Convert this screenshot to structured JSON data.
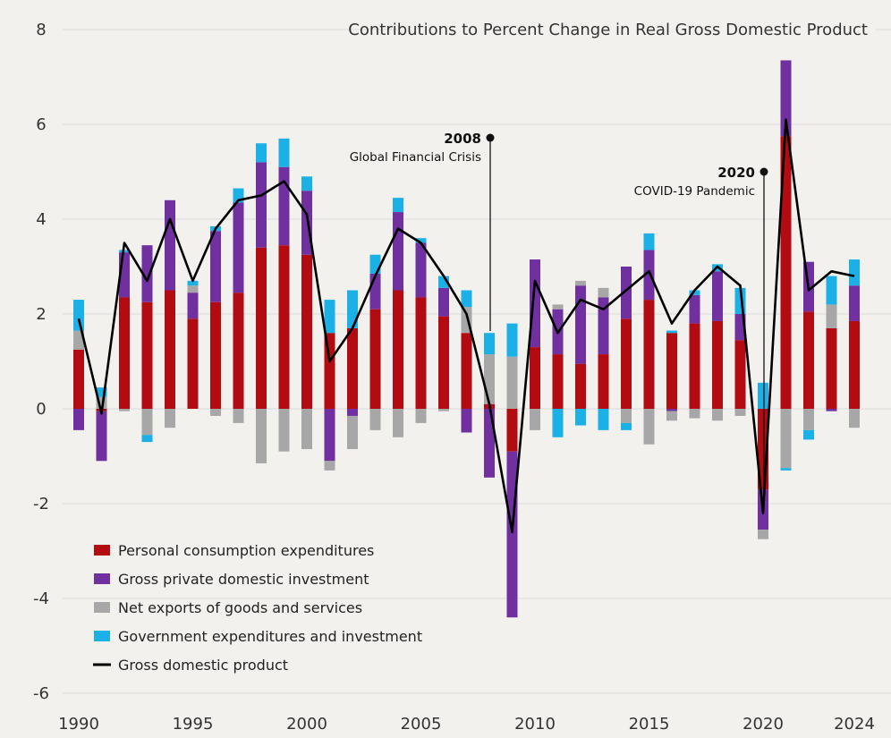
{
  "chart_data": {
    "type": "bar",
    "title": "Contributions to Percent Change in Real Gross Domestic Product",
    "stacked": true,
    "grid": true,
    "legend_position": "bottom-left",
    "ylim": [
      -6,
      8
    ],
    "yticks": [
      "8",
      "6",
      "4",
      "2",
      "0",
      "-2",
      "-4",
      "-6"
    ],
    "xticks": [
      "1990",
      "1995",
      "2000",
      "2005",
      "2010",
      "2015",
      "2020",
      "2024"
    ],
    "x": [
      1990,
      1991,
      1992,
      1993,
      1994,
      1995,
      1996,
      1997,
      1998,
      1999,
      2000,
      2001,
      2002,
      2003,
      2004,
      2005,
      2006,
      2007,
      2008,
      2009,
      2010,
      2011,
      2012,
      2013,
      2014,
      2015,
      2016,
      2017,
      2018,
      2019,
      2020,
      2021,
      2022,
      2023,
      2024
    ],
    "series": [
      {
        "name": "Personal consumption expenditures",
        "color": "#b30b12",
        "values": [
          1.25,
          -0.05,
          2.35,
          2.25,
          2.5,
          1.9,
          2.25,
          2.45,
          3.4,
          3.45,
          3.25,
          1.6,
          1.7,
          2.1,
          2.5,
          2.35,
          1.95,
          1.6,
          0.1,
          -0.9,
          1.3,
          1.15,
          0.95,
          1.15,
          1.9,
          2.3,
          1.6,
          1.8,
          1.85,
          1.45,
          -1.7,
          5.75,
          2.05,
          1.7,
          1.85
        ]
      },
      {
        "name": "Gross private domestic investment",
        "color": "#7030a0",
        "values": [
          -0.45,
          -1.05,
          0.95,
          1.2,
          1.9,
          0.55,
          1.5,
          1.9,
          1.8,
          1.65,
          1.35,
          -1.1,
          -0.15,
          0.75,
          1.65,
          1.15,
          0.6,
          -0.5,
          -1.45,
          -3.5,
          1.85,
          0.95,
          1.65,
          1.2,
          1.1,
          1.05,
          -0.05,
          0.6,
          1.05,
          0.55,
          -0.85,
          1.6,
          1.05,
          -0.05,
          0.75
        ]
      },
      {
        "name": "Net exports of goods and services",
        "color": "#a7a7a7",
        "values": [
          0.4,
          0.25,
          -0.05,
          -0.55,
          -0.4,
          0.15,
          -0.15,
          -0.3,
          -1.15,
          -0.9,
          -0.85,
          -0.2,
          -0.7,
          -0.45,
          -0.6,
          -0.3,
          -0.05,
          0.55,
          1.05,
          1.1,
          -0.45,
          0.1,
          0.1,
          0.2,
          -0.3,
          -0.75,
          -0.2,
          -0.2,
          -0.25,
          -0.15,
          -0.2,
          -1.25,
          -0.45,
          0.5,
          -0.4
        ]
      },
      {
        "name": "Government expenditures and investment",
        "color": "#1bb0e6",
        "values": [
          0.65,
          0.2,
          0.05,
          -0.15,
          0.0,
          0.1,
          0.1,
          0.3,
          0.4,
          0.6,
          0.3,
          0.7,
          0.8,
          0.4,
          0.3,
          0.1,
          0.25,
          0.35,
          0.45,
          0.7,
          0.0,
          -0.6,
          -0.35,
          -0.45,
          -0.15,
          0.35,
          0.05,
          0.1,
          0.15,
          0.55,
          0.55,
          -0.05,
          -0.2,
          0.6,
          0.55
        ]
      },
      {
        "name": "Gross domestic product",
        "color": "#000000",
        "type": "line",
        "values": [
          1.9,
          -0.1,
          3.5,
          2.7,
          4.0,
          2.7,
          3.8,
          4.4,
          4.5,
          4.8,
          4.1,
          1.0,
          1.7,
          2.8,
          3.8,
          3.5,
          2.8,
          2.0,
          0.1,
          -2.6,
          2.7,
          1.6,
          2.3,
          2.1,
          2.5,
          2.9,
          1.8,
          2.5,
          3.0,
          2.6,
          -2.2,
          6.1,
          2.5,
          2.9,
          2.8
        ]
      }
    ],
    "annotations": [
      {
        "year": "2008",
        "label": "Global Financial Crisis",
        "x": 2008
      },
      {
        "year": "2020",
        "label": "COVID-19 Pandemic",
        "x": 2020
      }
    ]
  }
}
